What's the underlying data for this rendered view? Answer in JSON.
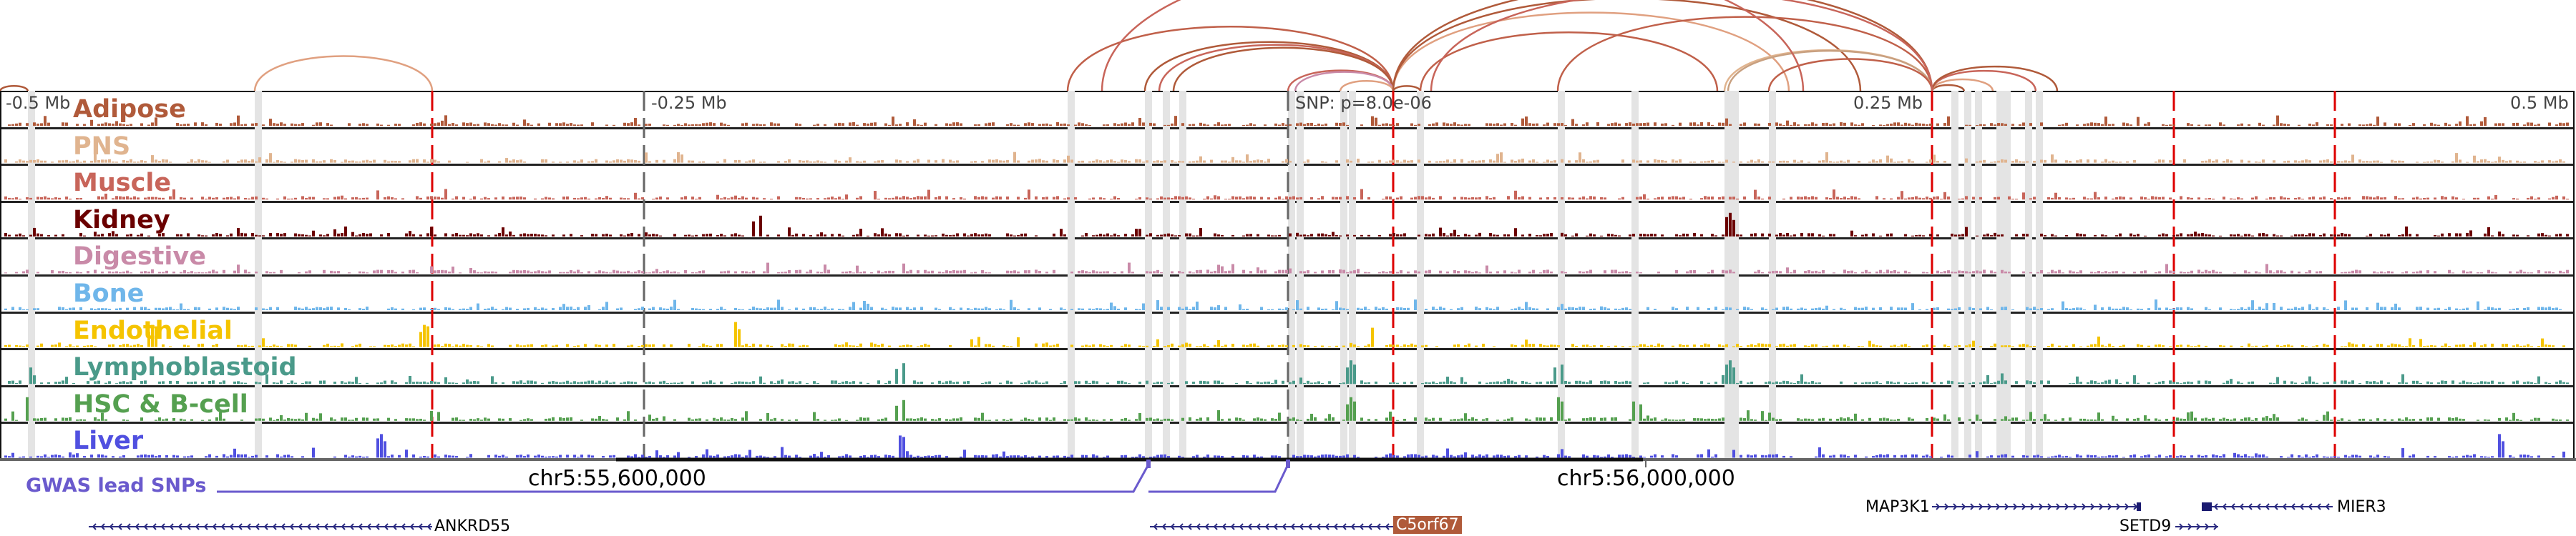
{
  "scale_labels": {
    "left": "-0.5 Mb",
    "mid_left": "-0.25 Mb",
    "snp": "SNP: p=8.0e-06",
    "mid_right": "0.25 Mb",
    "right": "0.5 Mb"
  },
  "tracks": [
    {
      "label": "Adipose",
      "color": "#b05a3a"
    },
    {
      "label": "PNS",
      "color": "#e0b48f"
    },
    {
      "label": "Muscle",
      "color": "#c8655a"
    },
    {
      "label": "Kidney",
      "color": "#6b0000"
    },
    {
      "label": "Digestive",
      "color": "#c98aa8"
    },
    {
      "label": "Bone",
      "color": "#6fb6ea"
    },
    {
      "label": "Endothelial",
      "color": "#f5c400"
    },
    {
      "label": "Lymphoblastoid",
      "color": "#4a9a8a"
    },
    {
      "label": "HSC & B-cell",
      "color": "#55a050"
    },
    {
      "label": "Liver",
      "color": "#5050e0"
    }
  ],
  "gwas_label": "GWAS lead SNPs",
  "coords": [
    "chr5:55,600,000",
    "chr5:56,000,000"
  ],
  "genes": {
    "map3k1": "MAP3K1",
    "mier3": "MIER3",
    "ankrd55": "ANKRD55",
    "c5orf67": "C5orf67",
    "setd9": "SETD9"
  },
  "colors": {
    "gene": "#2a2a80",
    "snp_line": "#6a5acd",
    "red_marker": "#dd0000"
  }
}
